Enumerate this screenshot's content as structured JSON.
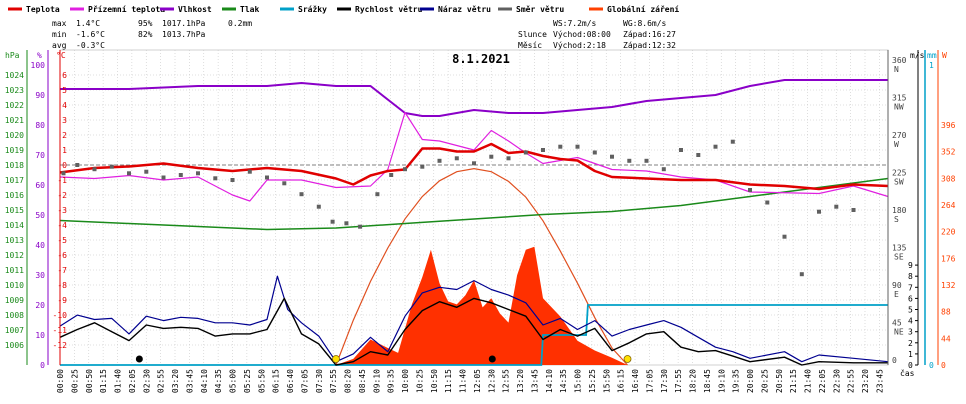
{
  "chart_data": {
    "type": "line",
    "title": "8.1.2021",
    "legend": [
      {
        "name": "Teplota",
        "color": "#e00000"
      },
      {
        "name": "Přízemní teplota",
        "color": "#e020e0"
      },
      {
        "name": "Vlhkost",
        "color": "#8a00c8"
      },
      {
        "name": "Tlak",
        "color": "#1a8a1a"
      },
      {
        "name": "Srážky",
        "color": "#00a0c8"
      },
      {
        "name": "Rychlost větru",
        "color": "#000000"
      },
      {
        "name": "Náraz větru",
        "color": "#000090"
      },
      {
        "name": "Směr větru",
        "color": "#606060"
      },
      {
        "name": "Globální záření",
        "color": "#ff4000"
      }
    ],
    "stats": {
      "max": {
        "label": "max",
        "temp": "1.4°C",
        "hum": "95%",
        "press": "1017.1hPa",
        "rain": "0.2mm"
      },
      "min": {
        "label": "min",
        "temp": "-1.6°C",
        "hum": "82%",
        "press": "1013.7hPa"
      },
      "avg": {
        "label": "avg",
        "temp": "-0.3°C"
      }
    },
    "info": {
      "ws": "WS:7.2m/s",
      "wg": "WG:8.6m/s",
      "sun_label": "Slunce",
      "sunrise": "Východ:08:00",
      "sunset": "Západ:16:27",
      "moon_label": "Měsíc",
      "moonrise": "Východ:2:18",
      "moonset": "Západ:12:32"
    },
    "axes": {
      "hpa": {
        "unit": "hPa",
        "ticks": [
          "1024",
          "1023",
          "1022",
          "1021",
          "1020",
          "1019",
          "1018",
          "1017",
          "1016",
          "1015",
          "1014",
          "1013",
          "1012",
          "1011",
          "1010",
          "1009",
          "1008",
          "1007",
          "1006"
        ]
      },
      "pct": {
        "unit": "%",
        "ticks": [
          "100",
          "90",
          "80",
          "70",
          "60",
          "50",
          "40",
          "30",
          "20",
          "10",
          "0"
        ]
      },
      "degc": {
        "unit": "°C",
        "ticks": [
          "6",
          "5",
          "4",
          "3",
          "2",
          "1",
          "0",
          "-1",
          "-2",
          "-3",
          "-4",
          "-5",
          "-6",
          "-7",
          "-8",
          "-9",
          "-10",
          "-11",
          "-12"
        ]
      },
      "wind_dir": {
        "ticks": [
          [
            "360",
            "N"
          ],
          [
            "315",
            "NW"
          ],
          [
            "270",
            "W"
          ],
          [
            "225",
            "SW"
          ],
          [
            "180",
            "S"
          ],
          [
            "135",
            "SE"
          ],
          [
            "90",
            "E"
          ],
          [
            "45",
            "NE"
          ],
          [
            "0",
            ""
          ]
        ]
      },
      "ms": {
        "unit": "m/s",
        "ticks": [
          "9",
          "8",
          "7",
          "6",
          "5",
          "4",
          "3",
          "2",
          "1",
          "0"
        ]
      },
      "mm": {
        "unit": "mm",
        "ticks": [
          "1",
          "0"
        ]
      },
      "wm2": {
        "unit": "W",
        "ticks": [
          "396",
          "352",
          "308",
          "264",
          "220",
          "176",
          "132",
          "88",
          "44",
          "0"
        ]
      },
      "xlabel": "čas",
      "x_ticks": [
        "00:00",
        "00:25",
        "00:50",
        "01:15",
        "01:40",
        "02:05",
        "02:30",
        "02:55",
        "03:20",
        "03:45",
        "04:10",
        "04:35",
        "05:00",
        "05:25",
        "05:50",
        "06:15",
        "06:40",
        "07:05",
        "07:30",
        "07:55",
        "08:20",
        "08:45",
        "09:10",
        "09:35",
        "10:00",
        "10:25",
        "10:50",
        "11:15",
        "11:40",
        "12:05",
        "12:30",
        "12:55",
        "13:20",
        "13:45",
        "14:10",
        "14:35",
        "15:00",
        "15:25",
        "15:50",
        "16:15",
        "16:40",
        "17:05",
        "17:30",
        "17:55",
        "18:20",
        "18:45",
        "19:10",
        "19:35",
        "20:00",
        "20:25",
        "20:50",
        "21:15",
        "21:40",
        "22:05",
        "22:30",
        "22:55",
        "23:20",
        "23:45"
      ]
    },
    "series": [
      {
        "name": "Teplota",
        "unit": "°C",
        "x_h": [
          0,
          1,
          2,
          3,
          4,
          5,
          6,
          7,
          8,
          8.5,
          9,
          9.5,
          10,
          10.5,
          11,
          11.5,
          12,
          12.5,
          13,
          13.5,
          14,
          14.5,
          15,
          15.5,
          16,
          17,
          18,
          19,
          20,
          21,
          22,
          23,
          24
        ],
        "values": [
          -0.5,
          -0.2,
          -0.1,
          0.1,
          -0.2,
          -0.4,
          -0.2,
          -0.4,
          -0.9,
          -1.3,
          -0.7,
          -0.4,
          -0.3,
          1.1,
          1.1,
          0.9,
          0.9,
          1.4,
          0.8,
          0.9,
          0.6,
          0.4,
          0.3,
          -0.4,
          -0.8,
          -0.9,
          -1.0,
          -1.0,
          -1.3,
          -1.4,
          -1.6,
          -1.3,
          -1.4
        ]
      },
      {
        "name": "Přízemní teplota",
        "unit": "°C",
        "x_h": [
          0,
          1,
          2,
          3,
          4,
          5,
          5.5,
          6,
          7,
          8,
          9,
          9.5,
          10,
          10.5,
          11,
          12,
          12.5,
          13,
          13.5,
          14,
          15,
          16,
          17,
          18,
          19,
          20,
          22,
          23,
          24
        ],
        "values": [
          -0.8,
          -0.9,
          -0.7,
          -1.0,
          -0.8,
          -2.0,
          -2.4,
          -1.0,
          -1.0,
          -1.5,
          -1.4,
          -0.3,
          3.5,
          1.7,
          1.6,
          1.0,
          2.3,
          1.6,
          0.8,
          0.1,
          0.5,
          -0.3,
          -0.4,
          -0.8,
          -1.0,
          -1.8,
          -1.9,
          -1.4,
          -2.1
        ]
      },
      {
        "name": "Vlhkost",
        "unit": "%",
        "x_h": [
          0,
          2,
          4,
          6,
          7,
          8,
          9,
          10,
          10.5,
          11,
          12,
          13,
          14,
          15,
          16,
          17,
          18,
          19,
          20,
          21,
          22,
          24
        ],
        "values": [
          92,
          92,
          93,
          93,
          94,
          93,
          93,
          84,
          83,
          83,
          85,
          84,
          84,
          85,
          86,
          88,
          89,
          90,
          93,
          95,
          95,
          95
        ]
      },
      {
        "name": "Tlak",
        "unit": "hPa",
        "x_h": [
          0,
          2,
          4,
          6,
          8,
          10,
          12,
          14,
          16,
          18,
          19,
          20,
          21,
          22,
          23,
          24
        ],
        "values": [
          1014.3,
          1014.1,
          1013.9,
          1013.7,
          1013.8,
          1014.1,
          1014.4,
          1014.7,
          1014.9,
          1015.3,
          1015.6,
          1015.9,
          1016.2,
          1016.5,
          1016.8,
          1017.1
        ]
      },
      {
        "name": "Srážky",
        "unit": "mm",
        "x_h": [
          0,
          13.95,
          14.0,
          15.25,
          15.3,
          24
        ],
        "values": [
          0,
          0,
          0.1,
          0.1,
          0.2,
          0.2
        ]
      },
      {
        "name": "Rychlost větru",
        "unit": "m/s",
        "x_h": [
          0,
          0.5,
          1,
          1.5,
          2,
          2.5,
          3,
          3.5,
          4,
          4.5,
          5,
          5.5,
          6,
          6.5,
          7,
          7.5,
          8,
          8.5,
          9,
          9.5,
          10,
          10.5,
          11,
          11.5,
          12,
          12.5,
          13,
          13.5,
          14,
          14.5,
          15,
          15.5,
          16,
          16.5,
          17,
          17.5,
          18,
          18.5,
          19,
          19.5,
          20,
          21,
          21.5,
          22,
          23,
          24
        ],
        "values": [
          2.5,
          3.2,
          3.8,
          3.0,
          2.2,
          3.6,
          3.3,
          3.4,
          3.3,
          2.6,
          2.8,
          2.8,
          3.2,
          6.0,
          2.8,
          1.9,
          0.0,
          0.3,
          1.2,
          0.9,
          3.2,
          4.9,
          5.7,
          5.2,
          6.0,
          5.6,
          5.0,
          4.4,
          2.3,
          3.2,
          2.6,
          3.3,
          1.3,
          2.0,
          2.8,
          3.0,
          1.6,
          1.2,
          1.3,
          0.8,
          0.3,
          0.7,
          0.0,
          0.3,
          0.2,
          0.2
        ]
      },
      {
        "name": "Náraz větru",
        "unit": "m/s",
        "x_h": [
          0,
          0.5,
          1,
          1.5,
          2,
          2.5,
          3,
          3.5,
          4,
          4.5,
          5,
          5.5,
          6,
          6.3,
          6.6,
          7,
          7.5,
          8,
          8.5,
          9,
          9.5,
          10,
          10.5,
          11,
          11.5,
          12,
          12.5,
          13,
          13.5,
          14,
          14.5,
          15,
          15.5,
          16,
          16.5,
          17,
          17.5,
          18,
          18.5,
          19,
          19.5,
          20,
          21,
          21.5,
          22,
          23,
          24
        ],
        "values": [
          3.5,
          4.5,
          4.1,
          4.2,
          2.8,
          4.4,
          4.0,
          4.3,
          4.2,
          3.8,
          3.8,
          3.6,
          4.1,
          8.0,
          5.0,
          3.8,
          2.6,
          0.3,
          1.0,
          2.5,
          1.2,
          4.4,
          6.5,
          7.0,
          6.8,
          7.6,
          6.8,
          6.3,
          5.6,
          3.6,
          4.2,
          3.2,
          4.0,
          2.6,
          3.2,
          3.6,
          4.0,
          3.4,
          2.5,
          1.6,
          1.2,
          0.6,
          1.2,
          0.3,
          0.9,
          0.6,
          0.3
        ]
      },
      {
        "name": "Směr větru",
        "unit": "deg",
        "x_h": [
          0.1,
          0.5,
          1,
          1.5,
          2,
          2.5,
          3,
          3.5,
          4,
          4.5,
          5,
          5.5,
          6,
          6.5,
          7,
          7.5,
          7.9,
          8.3,
          8.7,
          9.2,
          9.6,
          10,
          10.5,
          11,
          11.5,
          12,
          12.5,
          13,
          13.5,
          14,
          14.5,
          15,
          15.5,
          16,
          16.5,
          17,
          17.5,
          18,
          18.5,
          19,
          19.5,
          20,
          20.5,
          21,
          21.5,
          22,
          22.5,
          23
        ],
        "values": [
          230,
          240,
          235,
          238,
          230,
          232,
          225,
          228,
          230,
          224,
          222,
          232,
          225,
          218,
          205,
          190,
          172,
          170,
          166,
          205,
          228,
          235,
          238,
          245,
          248,
          242,
          250,
          248,
          255,
          258,
          262,
          262,
          255,
          250,
          245,
          245,
          235,
          258,
          252,
          262,
          268,
          210,
          195,
          154,
          109,
          184,
          190,
          186
        ]
      },
      {
        "name": "Globální záření",
        "unit": "W/m²",
        "x_h": [
          8.0,
          8.5,
          9.0,
          9.5,
          9.8,
          10.0,
          10.2,
          10.5,
          10.75,
          11.0,
          11.25,
          11.5,
          11.75,
          12.0,
          12.25,
          12.5,
          12.75,
          13.0,
          13.25,
          13.5,
          13.75,
          14.0,
          14.5,
          15.0,
          15.5,
          16.0,
          16.45
        ],
        "values": [
          0,
          10,
          42,
          28,
          20,
          60,
          100,
          145,
          190,
          135,
          105,
          100,
          115,
          140,
          95,
          110,
          85,
          70,
          148,
          190,
          195,
          110,
          80,
          40,
          24,
          12,
          0
        ]
      },
      {
        "name": "Teoretické záření",
        "unit": "W/m²",
        "x_h": [
          8.0,
          8.5,
          9.0,
          9.5,
          10.0,
          10.5,
          11.0,
          11.5,
          12.0,
          12.5,
          13.0,
          13.5,
          14.0,
          14.5,
          15.0,
          15.5,
          16.0,
          16.45
        ],
        "values": [
          0,
          74,
          138,
          193,
          241,
          278,
          304,
          319,
          324,
          319,
          303,
          277,
          238,
          188,
          135,
          78,
          28,
          0
        ]
      }
    ],
    "moon_markers": [
      {
        "x_h": 2.3,
        "icon": "moonrise"
      },
      {
        "x_h": 12.53,
        "icon": "moonset"
      }
    ],
    "sun_markers": [
      {
        "x_h": 8.0,
        "icon": "sunrise"
      },
      {
        "x_h": 16.45,
        "icon": "sunset"
      }
    ],
    "colors": {
      "grid": "#c0c0c0",
      "zero_line": "#808080",
      "vertical_line": "#c8c8c8"
    }
  }
}
